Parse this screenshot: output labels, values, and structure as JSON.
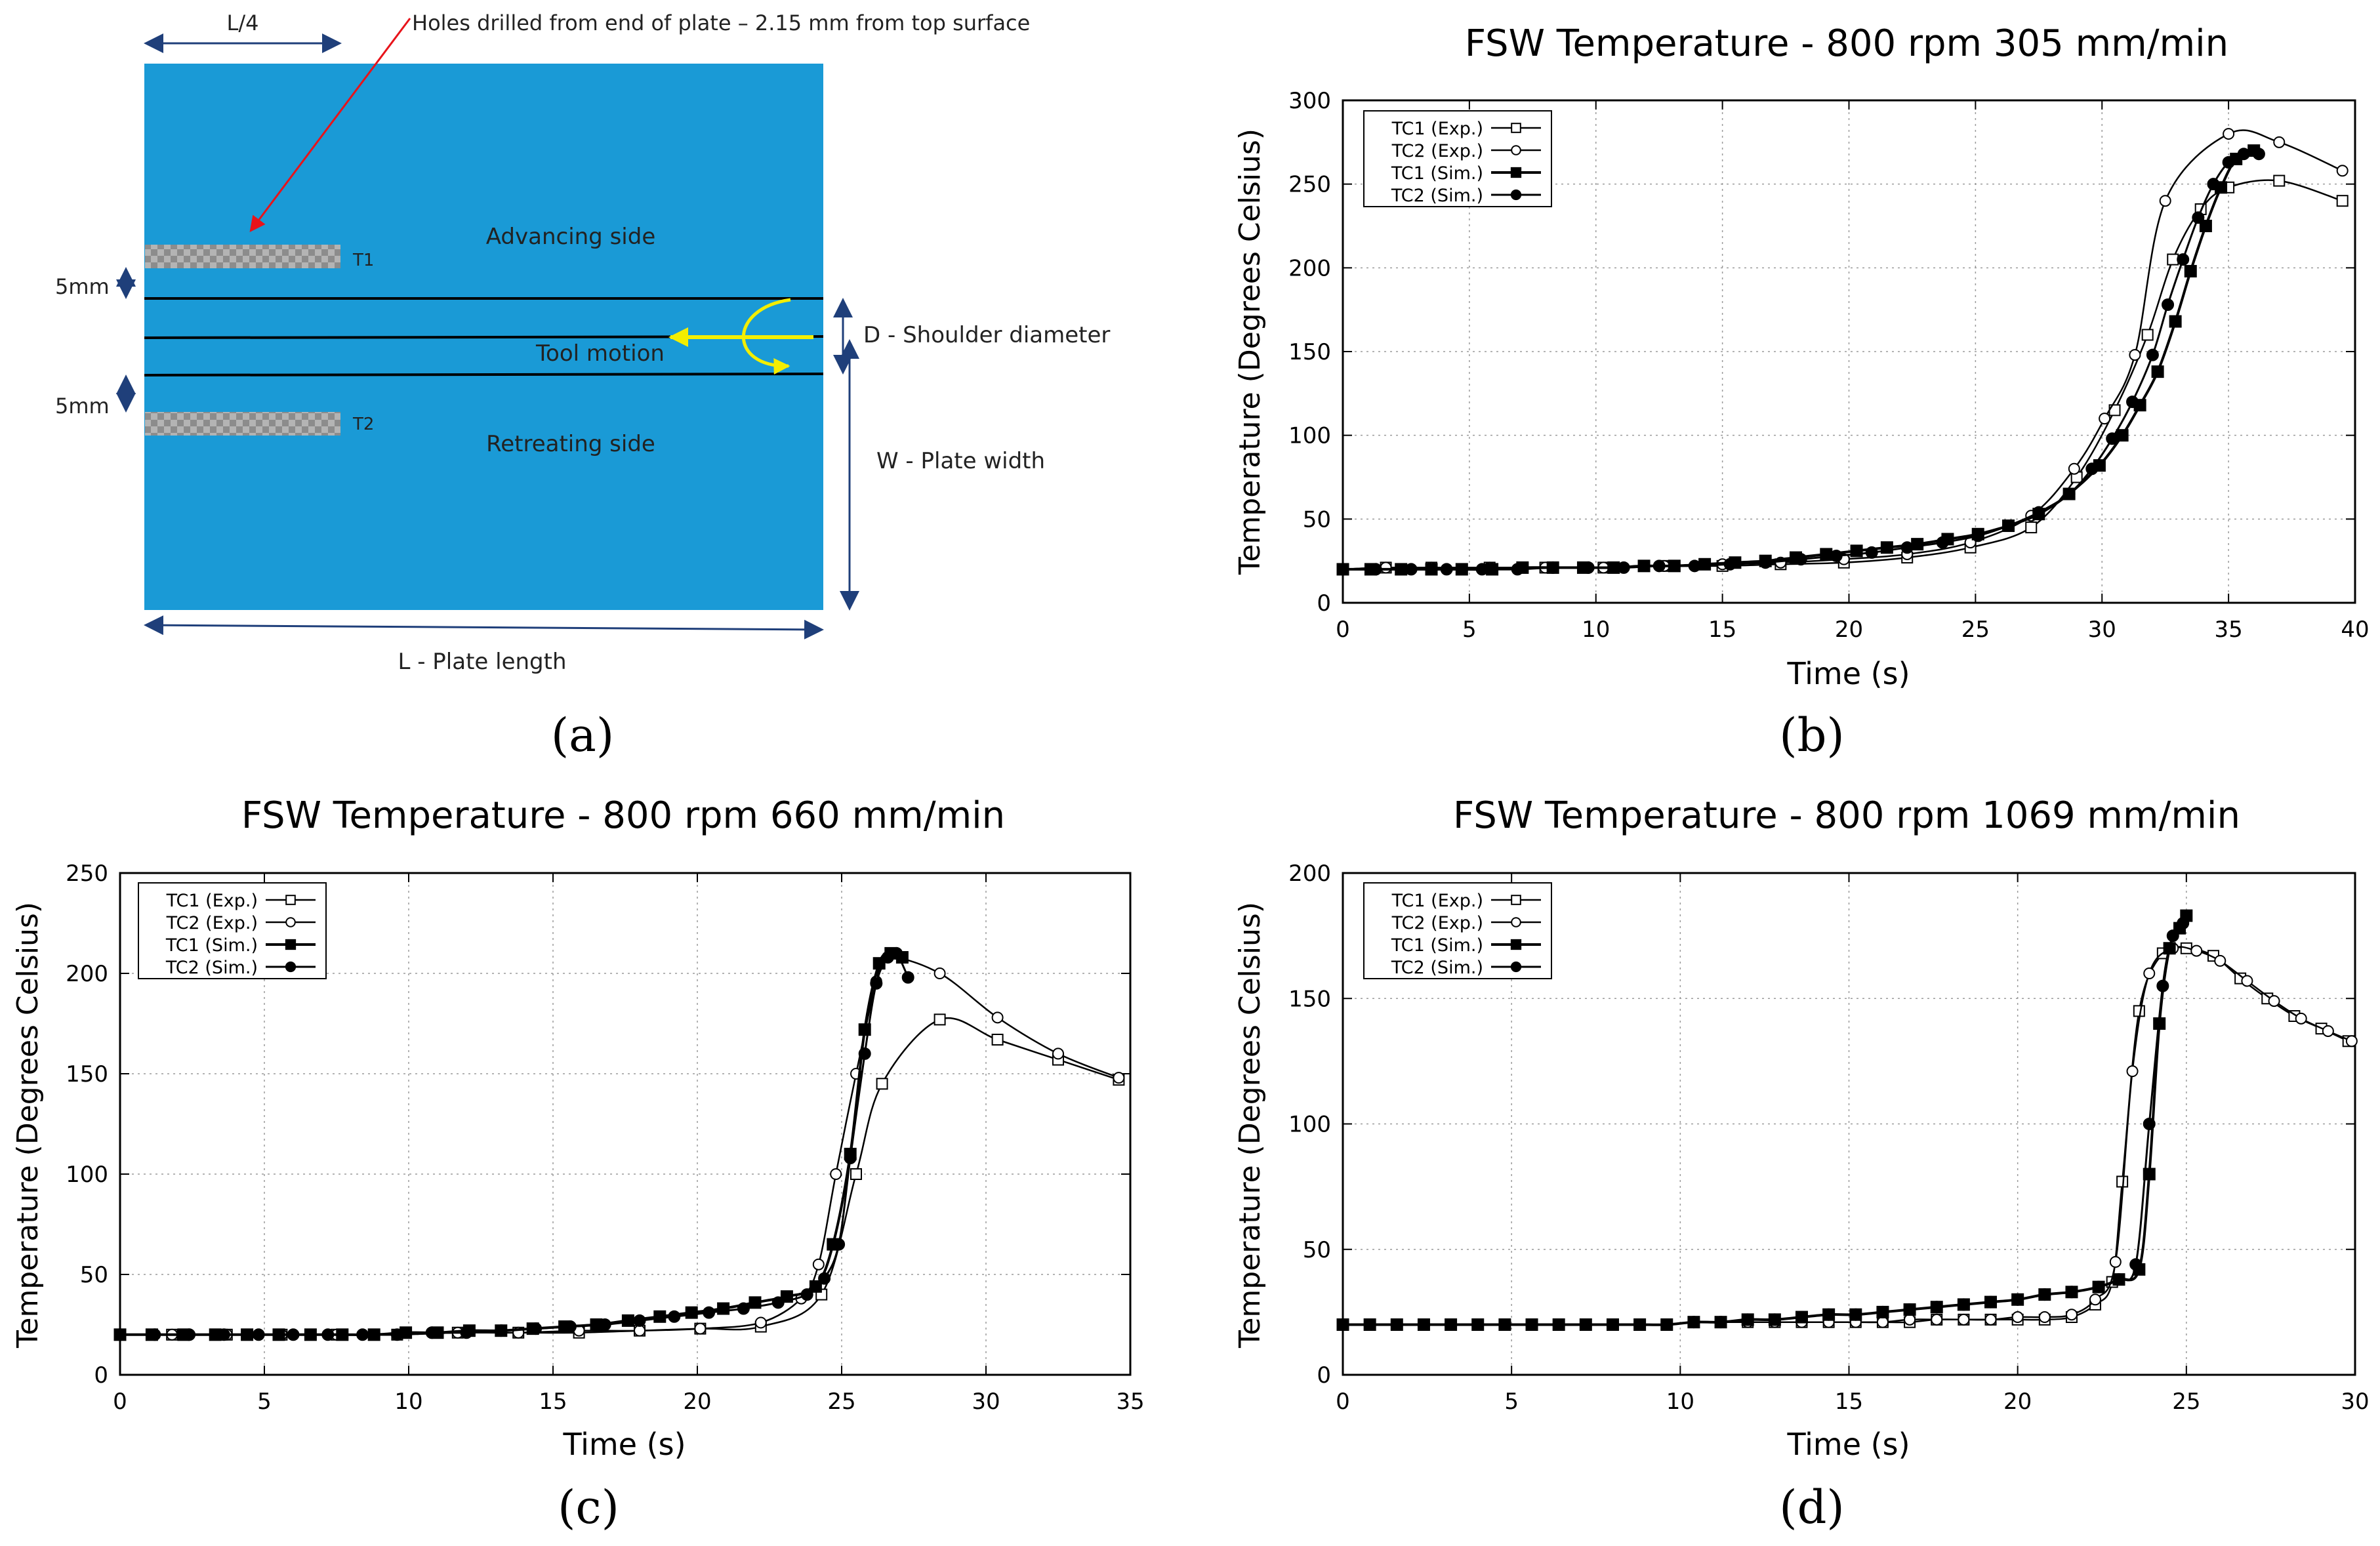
{
  "diagram": {
    "panel_label": "(a)",
    "quarter_label": "L/4",
    "hole_note": "Holes drilled from end of plate – 2.15 mm from top surface",
    "advancing": "Advancing side",
    "retreating": "Retreating side",
    "tool_motion": "Tool motion",
    "shoulder": "D - Shoulder diameter",
    "width": "W - Plate width",
    "length": "L - Plate length",
    "offset1": "5mm",
    "offset2": "5mm",
    "t1": "T1",
    "t2": "T2",
    "colors": {
      "plate": "#1a9ad6",
      "arrow": "#e8131a",
      "tool": "#f3ee00"
    }
  },
  "chart_data": [
    {
      "id": "b",
      "type": "line",
      "panel_label": "(b)",
      "title": "FSW Temperature - 800 rpm 305 mm/min",
      "xlabel": "Time (s)",
      "ylabel": "Temperature (Degrees Celsius)",
      "xlim": [
        0,
        40
      ],
      "ylim": [
        0,
        300
      ],
      "xticks": [
        0,
        5,
        10,
        15,
        20,
        25,
        30,
        35,
        40
      ],
      "yticks": [
        0,
        50,
        100,
        150,
        200,
        250,
        300
      ],
      "legend": "top-left",
      "series": [
        {
          "name": "TC1 (Exp.)",
          "marker": "open-square",
          "x": [
            0,
            1.7,
            3.5,
            5.8,
            8.0,
            10.3,
            12.7,
            15.0,
            17.3,
            19.8,
            22.3,
            24.8,
            27.2,
            29.0,
            30.5,
            31.8,
            32.8,
            33.9,
            35.0,
            37.0,
            39.5
          ],
          "y": [
            20,
            21,
            21,
            21,
            21,
            21,
            22,
            22,
            23,
            24,
            27,
            33,
            45,
            75,
            115,
            160,
            205,
            235,
            248,
            252,
            240
          ]
        },
        {
          "name": "TC2 (Exp.)",
          "marker": "open-circle",
          "x": [
            0,
            1.7,
            3.5,
            5.8,
            8.0,
            10.3,
            12.7,
            15.0,
            17.3,
            19.8,
            22.3,
            24.8,
            27.2,
            28.9,
            30.1,
            31.3,
            32.5,
            35.0,
            37.0,
            39.5
          ],
          "y": [
            20,
            21,
            21,
            21,
            21,
            21,
            22,
            23,
            24,
            26,
            29,
            36,
            52,
            80,
            110,
            148,
            240,
            280,
            275,
            258
          ]
        },
        {
          "name": "TC1 (Sim.)",
          "marker": "filled-square",
          "x": [
            0,
            1.1,
            2.3,
            3.5,
            4.7,
            5.9,
            7.1,
            8.3,
            9.5,
            10.7,
            11.9,
            13.1,
            14.3,
            15.5,
            16.7,
            17.9,
            19.1,
            20.3,
            21.5,
            22.7,
            23.9,
            25.1,
            26.3,
            27.5,
            28.7,
            29.9,
            30.8,
            31.5,
            32.2,
            32.9,
            33.5,
            34.1,
            34.7,
            35.3,
            36.0
          ],
          "y": [
            20,
            20,
            20,
            20,
            20,
            20,
            21,
            21,
            21,
            21,
            22,
            22,
            23,
            24,
            25,
            27,
            29,
            31,
            33,
            35,
            38,
            41,
            46,
            53,
            65,
            82,
            100,
            118,
            138,
            168,
            198,
            225,
            248,
            265,
            270
          ]
        },
        {
          "name": "TC2 (Sim.)",
          "marker": "filled-circle",
          "x": [
            0,
            1.3,
            2.7,
            4.1,
            5.5,
            6.9,
            8.3,
            9.7,
            11.1,
            12.5,
            13.9,
            15.3,
            16.7,
            18.1,
            19.5,
            20.9,
            22.3,
            23.7,
            25.1,
            26.3,
            27.5,
            28.7,
            29.6,
            30.4,
            31.2,
            32.0,
            32.6,
            33.2,
            33.8,
            34.4,
            35.0,
            35.6,
            36.2
          ],
          "y": [
            20,
            20,
            20,
            20,
            20,
            20,
            21,
            21,
            21,
            22,
            22,
            23,
            24,
            26,
            28,
            30,
            33,
            36,
            40,
            46,
            54,
            65,
            80,
            98,
            120,
            148,
            178,
            205,
            230,
            250,
            263,
            268,
            268
          ]
        }
      ]
    },
    {
      "id": "c",
      "type": "line",
      "panel_label": "(c)",
      "title": "FSW Temperature - 800 rpm 660 mm/min",
      "xlabel": "Time (s)",
      "ylabel": "Temperature (Degrees Celsius)",
      "xlim": [
        0,
        35
      ],
      "ylim": [
        0,
        250
      ],
      "xticks": [
        0,
        5,
        10,
        15,
        20,
        25,
        30,
        35
      ],
      "yticks": [
        0,
        50,
        100,
        150,
        200,
        250
      ],
      "legend": "top-left",
      "series": [
        {
          "name": "TC1 (Exp.)",
          "marker": "open-square",
          "x": [
            0,
            1.8,
            3.7,
            5.6,
            7.5,
            9.6,
            11.7,
            13.8,
            15.9,
            18.0,
            20.1,
            22.2,
            24.3,
            25.5,
            26.4,
            28.4,
            30.4,
            32.5,
            34.6
          ],
          "y": [
            20,
            20,
            20,
            20,
            20,
            20,
            21,
            21,
            21,
            22,
            23,
            24,
            40,
            100,
            145,
            177,
            167,
            157,
            147
          ]
        },
        {
          "name": "TC2 (Exp.)",
          "marker": "open-circle",
          "x": [
            0,
            1.8,
            3.7,
            5.6,
            7.5,
            9.6,
            11.7,
            13.8,
            15.9,
            18.0,
            20.1,
            22.2,
            23.6,
            24.2,
            24.8,
            25.5,
            26.2,
            26.6,
            28.4,
            30.4,
            32.5,
            34.6
          ],
          "y": [
            20,
            20,
            20,
            20,
            20,
            20,
            21,
            21,
            22,
            22,
            23,
            26,
            38,
            55,
            100,
            150,
            196,
            208,
            200,
            178,
            160,
            148
          ]
        },
        {
          "name": "TC1 (Sim.)",
          "marker": "filled-square",
          "x": [
            0,
            1.1,
            2.2,
            3.3,
            4.4,
            5.5,
            6.6,
            7.7,
            8.8,
            9.9,
            11.0,
            12.1,
            13.2,
            14.3,
            15.4,
            16.5,
            17.6,
            18.7,
            19.8,
            20.9,
            22.0,
            23.1,
            24.1,
            24.7,
            25.3,
            25.8,
            26.3,
            26.7,
            27.1
          ],
          "y": [
            20,
            20,
            20,
            20,
            20,
            20,
            20,
            20,
            20,
            21,
            21,
            22,
            22,
            23,
            24,
            25,
            27,
            29,
            31,
            33,
            36,
            39,
            44,
            65,
            110,
            172,
            205,
            210,
            208
          ]
        },
        {
          "name": "TC2 (Sim.)",
          "marker": "filled-circle",
          "x": [
            0,
            1.2,
            2.4,
            3.6,
            4.8,
            6.0,
            7.2,
            8.4,
            9.6,
            10.8,
            12.0,
            13.2,
            14.4,
            15.6,
            16.8,
            18.0,
            19.2,
            20.4,
            21.6,
            22.8,
            23.8,
            24.4,
            24.9,
            25.3,
            25.8,
            26.2,
            26.6,
            26.9,
            27.3
          ],
          "y": [
            20,
            20,
            20,
            20,
            20,
            20,
            20,
            20,
            20,
            21,
            21,
            22,
            23,
            24,
            25,
            27,
            29,
            31,
            33,
            36,
            40,
            48,
            65,
            108,
            160,
            195,
            208,
            210,
            198
          ]
        }
      ]
    },
    {
      "id": "d",
      "type": "line",
      "panel_label": "(d)",
      "title": "FSW Temperature - 800 rpm 1069 mm/min",
      "xlabel": "Time (s)",
      "ylabel": "Temperature (Degrees Celsius)",
      "xlim": [
        0,
        30
      ],
      "ylim": [
        0,
        200
      ],
      "xticks": [
        0,
        5,
        10,
        15,
        20,
        25,
        30
      ],
      "yticks": [
        0,
        50,
        100,
        150,
        200
      ],
      "legend": "top-left",
      "series": [
        {
          "name": "TC1 (Exp.)",
          "marker": "open-square",
          "x": [
            0,
            0.8,
            1.6,
            2.4,
            3.2,
            4.0,
            4.8,
            5.6,
            6.4,
            7.2,
            8.0,
            8.8,
            9.6,
            10.4,
            11.2,
            12.0,
            12.8,
            13.6,
            14.4,
            15.2,
            16.0,
            16.8,
            17.6,
            18.4,
            19.2,
            20.0,
            20.8,
            21.6,
            22.3,
            22.8,
            23.1,
            23.6,
            24.3,
            25.0,
            25.8,
            26.6,
            27.4,
            28.2,
            29.0,
            29.8
          ],
          "y": [
            20,
            20,
            20,
            20,
            20,
            20,
            20,
            20,
            20,
            20,
            20,
            20,
            20,
            21,
            21,
            21,
            21,
            21,
            21,
            21,
            21,
            21,
            22,
            22,
            22,
            22,
            22,
            23,
            28,
            37,
            77,
            145,
            168,
            170,
            167,
            158,
            150,
            143,
            138,
            133
          ]
        },
        {
          "name": "TC2 (Exp.)",
          "marker": "open-circle",
          "x": [
            0,
            0.8,
            1.6,
            2.4,
            3.2,
            4.0,
            4.8,
            5.6,
            6.4,
            7.2,
            8.0,
            8.8,
            9.6,
            10.4,
            11.2,
            12.0,
            12.8,
            13.6,
            14.4,
            15.2,
            16.0,
            16.8,
            17.6,
            18.4,
            19.2,
            20.0,
            20.8,
            21.6,
            22.3,
            22.9,
            23.4,
            23.9,
            24.6,
            25.3,
            26.0,
            26.8,
            27.6,
            28.4,
            29.2,
            29.9
          ],
          "y": [
            20,
            20,
            20,
            20,
            20,
            20,
            20,
            20,
            20,
            20,
            20,
            20,
            20,
            21,
            21,
            21,
            21,
            21,
            21,
            21,
            21,
            22,
            22,
            22,
            22,
            23,
            23,
            24,
            30,
            45,
            121,
            160,
            170,
            169,
            165,
            157,
            149,
            142,
            137,
            133
          ]
        },
        {
          "name": "TC1 (Sim.)",
          "marker": "filled-square",
          "x": [
            0,
            0.8,
            1.6,
            2.4,
            3.2,
            4.0,
            4.8,
            5.6,
            6.4,
            7.2,
            8.0,
            8.8,
            9.6,
            10.4,
            11.2,
            12.0,
            12.8,
            13.6,
            14.4,
            15.2,
            16.0,
            16.8,
            17.6,
            18.4,
            19.2,
            20.0,
            20.8,
            21.6,
            22.4,
            23.0,
            23.6,
            23.9,
            24.2,
            24.5,
            24.8,
            25.0
          ],
          "y": [
            20,
            20,
            20,
            20,
            20,
            20,
            20,
            20,
            20,
            20,
            20,
            20,
            20,
            21,
            21,
            22,
            22,
            23,
            24,
            24,
            25,
            26,
            27,
            28,
            29,
            30,
            32,
            33,
            35,
            38,
            42,
            80,
            140,
            170,
            178,
            183
          ]
        },
        {
          "name": "TC2 (Sim.)",
          "marker": "filled-circle",
          "x": [
            0,
            0.8,
            1.6,
            2.4,
            3.2,
            4.0,
            4.8,
            5.6,
            6.4,
            7.2,
            8.0,
            8.8,
            9.6,
            10.4,
            11.2,
            12.0,
            12.8,
            13.6,
            14.4,
            15.2,
            16.0,
            16.8,
            17.6,
            18.4,
            19.2,
            20.0,
            20.8,
            21.6,
            22.4,
            23.0,
            23.5,
            23.9,
            24.3,
            24.6,
            24.9
          ],
          "y": [
            20,
            20,
            20,
            20,
            20,
            20,
            20,
            20,
            20,
            20,
            20,
            20,
            20,
            21,
            21,
            22,
            22,
            23,
            24,
            24,
            25,
            26,
            27,
            28,
            29,
            30,
            32,
            33,
            35,
            38,
            44,
            100,
            155,
            175,
            180
          ]
        }
      ]
    }
  ]
}
